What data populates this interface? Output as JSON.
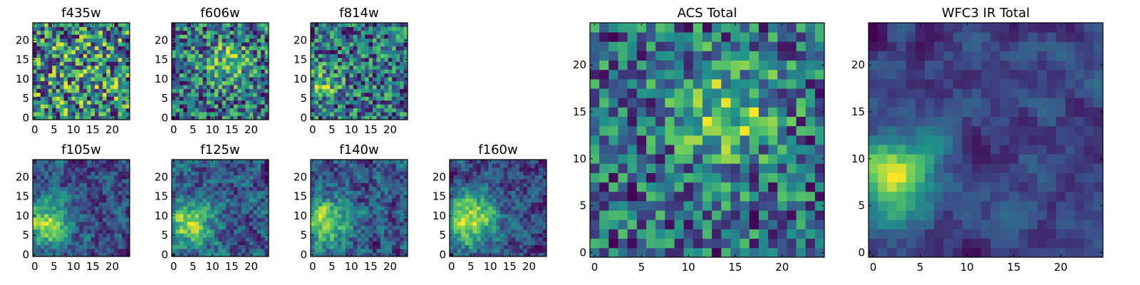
{
  "chart_data": [
    {
      "id": "f435w",
      "type": "heatmap",
      "title": "f435w",
      "pixels": 25,
      "xlim": [
        -0.5,
        24.5
      ],
      "ylim": [
        -0.5,
        24.5
      ],
      "xticks": [
        0,
        5,
        10,
        15,
        20
      ],
      "yticks": [
        0,
        5,
        10,
        15,
        20
      ],
      "colormap": "viridis",
      "seed": 11,
      "noise": 0.95,
      "blob": {
        "x": 12,
        "y": 12,
        "sigma": 9,
        "amp": 0.1
      },
      "smooth": 0
    },
    {
      "id": "f606w",
      "type": "heatmap",
      "title": "f606w",
      "pixels": 25,
      "xlim": [
        -0.5,
        24.5
      ],
      "ylim": [
        -0.5,
        24.5
      ],
      "xticks": [
        0,
        5,
        10,
        15,
        20
      ],
      "yticks": [
        0,
        5,
        10,
        15,
        20
      ],
      "colormap": "viridis",
      "seed": 23,
      "noise": 0.85,
      "blob": {
        "x": 14,
        "y": 14,
        "sigma": 4,
        "amp": 0.35
      },
      "smooth": 0
    },
    {
      "id": "f814w",
      "type": "heatmap",
      "title": "f814w",
      "pixels": 25,
      "xlim": [
        -0.5,
        24.5
      ],
      "ylim": [
        -0.5,
        24.5
      ],
      "xticks": [
        0,
        5,
        10,
        15,
        20
      ],
      "yticks": [
        0,
        5,
        10,
        15,
        20
      ],
      "colormap": "viridis",
      "seed": 37,
      "noise": 0.85,
      "blob": {
        "x": 3,
        "y": 9,
        "sigma": 3,
        "amp": 0.35
      },
      "smooth": 0
    },
    {
      "id": "f105w",
      "type": "heatmap",
      "title": "f105w",
      "pixels": 25,
      "xlim": [
        -0.5,
        24.5
      ],
      "ylim": [
        -0.5,
        24.5
      ],
      "xticks": [
        0,
        5,
        10,
        15,
        20
      ],
      "yticks": [
        0,
        5,
        10,
        15,
        20
      ],
      "colormap": "viridis",
      "seed": 41,
      "noise": 0.55,
      "blob": {
        "x": 3,
        "y": 8,
        "sigma": 4,
        "amp": 0.55
      },
      "smooth": 1
    },
    {
      "id": "f125w",
      "type": "heatmap",
      "title": "f125w",
      "pixels": 25,
      "xlim": [
        -0.5,
        24.5
      ],
      "ylim": [
        -0.5,
        24.5
      ],
      "xticks": [
        0,
        5,
        10,
        15,
        20
      ],
      "yticks": [
        0,
        5,
        10,
        15,
        20
      ],
      "colormap": "viridis",
      "seed": 53,
      "noise": 0.6,
      "blob": {
        "x": 4,
        "y": 8,
        "sigma": 4,
        "amp": 0.5
      },
      "smooth": 1
    },
    {
      "id": "f140w",
      "type": "heatmap",
      "title": "f140w",
      "pixels": 25,
      "xlim": [
        -0.5,
        24.5
      ],
      "ylim": [
        -0.5,
        24.5
      ],
      "xticks": [
        0,
        5,
        10,
        15,
        20
      ],
      "yticks": [
        0,
        5,
        10,
        15,
        20
      ],
      "colormap": "viridis",
      "seed": 67,
      "noise": 0.6,
      "blob": {
        "x": 3,
        "y": 8,
        "sigma": 4,
        "amp": 0.5
      },
      "smooth": 1
    },
    {
      "id": "f160w",
      "type": "heatmap",
      "title": "f160w",
      "pixels": 25,
      "xlim": [
        -0.5,
        24.5
      ],
      "ylim": [
        -0.5,
        24.5
      ],
      "xticks": [
        0,
        5,
        10,
        15,
        20
      ],
      "yticks": [
        0,
        5,
        10,
        15,
        20
      ],
      "colormap": "viridis",
      "seed": 79,
      "noise": 0.5,
      "blob": {
        "x": 5,
        "y": 9,
        "sigma": 5,
        "amp": 0.55
      },
      "smooth": 1
    },
    {
      "id": "acs_total",
      "type": "heatmap",
      "title": "ACS Total",
      "pixels": 25,
      "xlim": [
        -0.5,
        24.5
      ],
      "ylim": [
        -0.5,
        24.5
      ],
      "xticks": [
        0,
        5,
        10,
        15,
        20
      ],
      "yticks": [
        0,
        5,
        10,
        15,
        20
      ],
      "colormap": "viridis",
      "seed": 97,
      "noise": 0.7,
      "blob": {
        "x": 14,
        "y": 15,
        "sigma": 4,
        "amp": 0.4
      },
      "smooth": 0
    },
    {
      "id": "wfc3_ir_total",
      "type": "heatmap",
      "title": "WFC3 IR Total",
      "pixels": 25,
      "xlim": [
        -0.5,
        24.5
      ],
      "ylim": [
        -0.5,
        24.5
      ],
      "xticks": [
        0,
        5,
        10,
        15,
        20
      ],
      "yticks": [
        0,
        5,
        10,
        15,
        20
      ],
      "colormap": "viridis",
      "seed": 103,
      "noise": 0.45,
      "blob": {
        "x": 2,
        "y": 8,
        "sigma": 3,
        "amp": 0.6
      },
      "smooth": 2
    }
  ],
  "colors": {
    "background": "#ffffff",
    "axis": "#000000",
    "viridis": [
      "#440154",
      "#3b528b",
      "#21918c",
      "#5ec962",
      "#fde725"
    ]
  }
}
